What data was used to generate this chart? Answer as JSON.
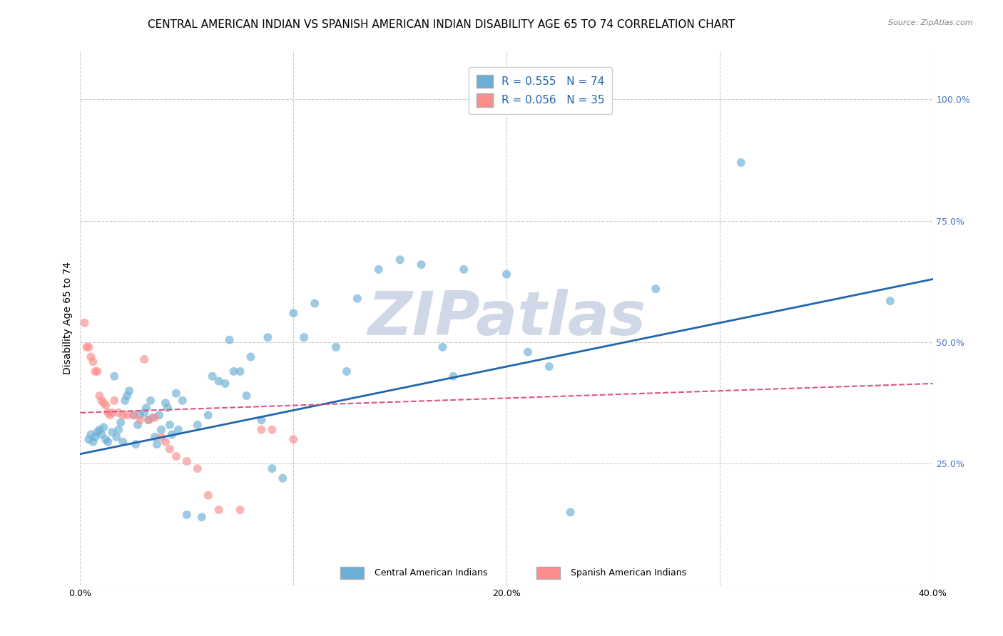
{
  "title": "CENTRAL AMERICAN INDIAN VS SPANISH AMERICAN INDIAN DISABILITY AGE 65 TO 74 CORRELATION CHART",
  "source": "Source: ZipAtlas.com",
  "xlabel": "",
  "ylabel": "Disability Age 65 to 74",
  "xlim": [
    0.0,
    0.4
  ],
  "ylim": [
    0.0,
    1.1
  ],
  "xtick_vals": [
    0.0,
    0.1,
    0.2,
    0.3,
    0.4
  ],
  "xtick_labels": [
    "0.0%",
    "",
    "20.0%",
    "",
    "40.0%"
  ],
  "ytick_vals": [
    0.0,
    0.25,
    0.5,
    0.75,
    1.0
  ],
  "ytick_labels": [
    "",
    "25.0%",
    "50.0%",
    "75.0%",
    "100.0%"
  ],
  "blue_R": 0.555,
  "blue_N": 74,
  "pink_R": 0.056,
  "pink_N": 35,
  "blue_color": "#6baed6",
  "pink_color": "#fc8d8d",
  "blue_line_color": "#2166ac",
  "pink_line_color": "#e0547a",
  "grid_color": "#cccccc",
  "watermark": "ZIPatlas",
  "blue_scatter_x": [
    0.004,
    0.005,
    0.006,
    0.007,
    0.008,
    0.009,
    0.01,
    0.011,
    0.012,
    0.013,
    0.015,
    0.016,
    0.017,
    0.018,
    0.019,
    0.02,
    0.021,
    0.022,
    0.023,
    0.025,
    0.026,
    0.027,
    0.028,
    0.03,
    0.031,
    0.032,
    0.033,
    0.034,
    0.035,
    0.036,
    0.037,
    0.038,
    0.04,
    0.041,
    0.042,
    0.043,
    0.045,
    0.046,
    0.048,
    0.05,
    0.055,
    0.057,
    0.06,
    0.062,
    0.065,
    0.068,
    0.07,
    0.072,
    0.075,
    0.078,
    0.08,
    0.085,
    0.088,
    0.09,
    0.095,
    0.1,
    0.105,
    0.11,
    0.12,
    0.125,
    0.13,
    0.14,
    0.15,
    0.16,
    0.17,
    0.175,
    0.18,
    0.2,
    0.21,
    0.22,
    0.23,
    0.27,
    0.31,
    0.38
  ],
  "blue_scatter_y": [
    0.3,
    0.31,
    0.295,
    0.305,
    0.315,
    0.32,
    0.31,
    0.325,
    0.3,
    0.295,
    0.315,
    0.43,
    0.305,
    0.32,
    0.335,
    0.295,
    0.38,
    0.39,
    0.4,
    0.35,
    0.29,
    0.33,
    0.35,
    0.355,
    0.365,
    0.34,
    0.38,
    0.345,
    0.305,
    0.29,
    0.35,
    0.32,
    0.375,
    0.365,
    0.33,
    0.31,
    0.395,
    0.32,
    0.38,
    0.145,
    0.33,
    0.14,
    0.35,
    0.43,
    0.42,
    0.415,
    0.505,
    0.44,
    0.44,
    0.39,
    0.47,
    0.34,
    0.51,
    0.24,
    0.22,
    0.56,
    0.51,
    0.58,
    0.49,
    0.44,
    0.59,
    0.65,
    0.67,
    0.66,
    0.49,
    0.43,
    0.65,
    0.64,
    0.48,
    0.45,
    0.15,
    0.61,
    0.87,
    0.585
  ],
  "pink_scatter_x": [
    0.002,
    0.003,
    0.004,
    0.005,
    0.006,
    0.007,
    0.008,
    0.009,
    0.01,
    0.011,
    0.012,
    0.013,
    0.014,
    0.015,
    0.016,
    0.018,
    0.02,
    0.022,
    0.025,
    0.028,
    0.03,
    0.032,
    0.035,
    0.038,
    0.04,
    0.042,
    0.045,
    0.05,
    0.055,
    0.06,
    0.065,
    0.075,
    0.085,
    0.09,
    0.1
  ],
  "pink_scatter_y": [
    0.54,
    0.49,
    0.49,
    0.47,
    0.46,
    0.44,
    0.44,
    0.39,
    0.38,
    0.375,
    0.37,
    0.355,
    0.35,
    0.355,
    0.38,
    0.355,
    0.35,
    0.35,
    0.35,
    0.34,
    0.465,
    0.34,
    0.345,
    0.305,
    0.295,
    0.28,
    0.265,
    0.255,
    0.24,
    0.185,
    0.155,
    0.155,
    0.32,
    0.32,
    0.3
  ],
  "blue_line_x": [
    0.0,
    0.4
  ],
  "blue_line_y": [
    0.27,
    0.63
  ],
  "pink_line_x": [
    0.0,
    0.4
  ],
  "pink_line_y": [
    0.355,
    0.415
  ],
  "legend_label_blue": "Central American Indians",
  "legend_label_pink": "Spanish American Indians",
  "background_color": "#ffffff",
  "title_fontsize": 11,
  "axis_label_fontsize": 10,
  "tick_fontsize": 9,
  "tick_color_y": "#4472c4",
  "watermark_color": "#d0d8e8",
  "watermark_fontsize": 62
}
